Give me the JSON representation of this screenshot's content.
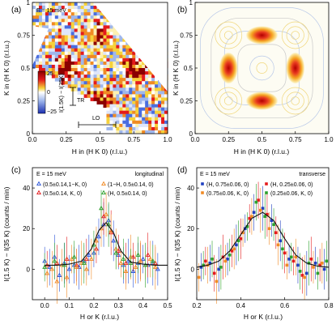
{
  "colors": {
    "red": "#e41a1c",
    "blue": "#2c55d8",
    "orange": "#f08a24",
    "green": "#2ca02c",
    "navy": "#1f3fbf",
    "fit": "#111111"
  },
  "chart_data": [
    {
      "type": "heatmap",
      "panel": "(a)",
      "annotation": "E = 15 meV",
      "xlabel": "H in (H K 0) (r.l.u.)",
      "ylabel": "K in (H K 0) (r.l.u.)",
      "xlim": [
        0.0,
        1.0
      ],
      "ylim": [
        0.0,
        1.0
      ],
      "xticks": [
        "0.0",
        "0.25",
        "0.5",
        "0.75",
        "1.0"
      ],
      "yticks": [
        "0",
        "0.25",
        "0.5",
        "0.75",
        "1"
      ],
      "colorbar": {
        "label": "I(1.5K) − I(35K)",
        "min": -25,
        "max": 25,
        "ticks": [
          "25",
          "0",
          "−25"
        ]
      },
      "markers": [
        "TR",
        "LO"
      ],
      "hotspots": [
        {
          "h": 0.25,
          "k": 0.5
        },
        {
          "h": 0.5,
          "k": 0.25
        },
        {
          "h": 0.5,
          "k": 0.75
        },
        {
          "h": 0.75,
          "k": 0.5
        }
      ]
    },
    {
      "type": "heatmap",
      "panel": "(b)",
      "xlabel": "H in (H K 0) (r.l.u.)",
      "ylabel": "K in (H K 0) (r.l.u.)",
      "xlim": [
        0.0,
        1.0
      ],
      "ylim": [
        0.0,
        1.0
      ],
      "xticks": [
        "0.0",
        "0.25",
        "0.5",
        "0.75",
        "1.0"
      ],
      "yticks": [
        "0",
        "0.25",
        "0.5",
        "0.75",
        "1"
      ],
      "peaks": [
        {
          "h": 0.5,
          "k": 0.75
        },
        {
          "h": 0.25,
          "k": 0.5
        },
        {
          "h": 0.75,
          "k": 0.5
        },
        {
          "h": 0.5,
          "k": 0.25
        }
      ]
    },
    {
      "type": "scatter",
      "panel": "(c)",
      "annotation": "E = 15 meV",
      "tag": "longitudinal",
      "xlabel": "H or K (r.l.u.)",
      "ylabel": "I(1.5 K) − I(35 K) (counts / min)",
      "xlim": [
        -0.05,
        0.5
      ],
      "ylim": [
        -15,
        50
      ],
      "xticks": [
        "0.0",
        "0.1",
        "0.2",
        "0.3",
        "0.4",
        "0.5"
      ],
      "yticks": [
        "0",
        "20",
        "40"
      ],
      "series": [
        {
          "name": "(0.5±0.14,1−K, 0)",
          "color": "blue",
          "x": [
            0.0,
            0.02,
            0.04,
            0.06,
            0.08,
            0.1,
            0.12,
            0.14,
            0.16,
            0.18,
            0.2,
            0.22,
            0.24,
            0.26,
            0.28,
            0.3,
            0.32,
            0.34,
            0.36,
            0.38,
            0.4,
            0.42,
            0.44,
            0.46
          ],
          "y": [
            4,
            1,
            6,
            -3,
            3,
            0,
            2,
            1,
            4,
            7,
            8,
            16,
            22,
            24,
            14,
            7,
            2,
            4,
            -1,
            3,
            5,
            2,
            3,
            0
          ]
        },
        {
          "name": "(0.5±0.14, K, 0)",
          "color": "red",
          "x": [
            0.01,
            0.05,
            0.09,
            0.13,
            0.17,
            0.21,
            0.24,
            0.27,
            0.3,
            0.33,
            0.36,
            0.39,
            0.42,
            0.45
          ],
          "y": [
            2,
            3,
            5,
            2,
            5,
            10,
            26,
            18,
            9,
            3,
            6,
            4,
            7,
            3
          ]
        },
        {
          "name": "(1−H, 0.5±0.14, 0)",
          "color": "orange",
          "x": [
            0.01,
            0.03,
            0.05,
            0.07,
            0.09,
            0.11,
            0.13,
            0.15,
            0.17,
            0.19,
            0.21,
            0.23,
            0.25,
            0.27,
            0.29,
            0.31,
            0.33,
            0.35,
            0.37,
            0.39,
            0.41,
            0.43,
            0.45
          ],
          "y": [
            -2,
            0,
            -6,
            2,
            -4,
            5,
            1,
            3,
            0,
            5,
            14,
            20,
            27,
            19,
            10,
            3,
            -1,
            6,
            1,
            4,
            2,
            5,
            1
          ]
        },
        {
          "name": "(H, 0.5±0.14, 0)",
          "color": "green",
          "x": [
            0.0,
            0.04,
            0.08,
            0.12,
            0.16,
            0.2,
            0.23,
            0.26,
            0.29,
            0.32,
            0.35,
            0.38,
            0.41,
            0.44
          ],
          "y": [
            1,
            4,
            2,
            6,
            3,
            12,
            30,
            22,
            8,
            5,
            3,
            7,
            2,
            4
          ]
        }
      ],
      "fit": {
        "x": [
          0.0,
          0.05,
          0.1,
          0.15,
          0.19,
          0.22,
          0.25,
          0.28,
          0.31,
          0.35,
          0.4,
          0.45,
          0.5
        ],
        "y": [
          2,
          2,
          2.5,
          4,
          10,
          19,
          23,
          18,
          9,
          3.5,
          2.5,
          2,
          2
        ]
      }
    },
    {
      "type": "scatter",
      "panel": "(d)",
      "annotation": "E = 15 meV",
      "tag": "transverse",
      "xlabel": "H or K (r.l.u.)",
      "ylabel": "I(1.5 K) − I(35 K) (counts / min)",
      "xlim": [
        0.2,
        0.8
      ],
      "ylim": [
        -15,
        50
      ],
      "xticks": [
        "0.2",
        "0.4",
        "0.6",
        "0.8"
      ],
      "yticks": [
        "0",
        "20",
        "40"
      ],
      "series": [
        {
          "name": "(H, 0.75±0.06, 0)",
          "color": "navy",
          "x": [
            0.22,
            0.26,
            0.3,
            0.34,
            0.38,
            0.42,
            0.46,
            0.5,
            0.54,
            0.58,
            0.62,
            0.66,
            0.7,
            0.74,
            0.78
          ],
          "y": [
            1,
            3,
            0,
            5,
            12,
            20,
            28,
            30,
            24,
            14,
            5,
            2,
            -2,
            3,
            0
          ]
        },
        {
          "name": "(H, 0.25±0.06, 0)",
          "color": "red",
          "x": [
            0.24,
            0.28,
            0.32,
            0.36,
            0.4,
            0.44,
            0.48,
            0.52,
            0.56,
            0.6,
            0.64,
            0.68,
            0.72,
            0.76
          ],
          "y": [
            4,
            -2,
            6,
            9,
            15,
            25,
            34,
            27,
            18,
            8,
            4,
            -3,
            5,
            2
          ]
        },
        {
          "name": "(0.75±0.06, K, 0)",
          "color": "orange",
          "x": [
            0.21,
            0.25,
            0.29,
            0.33,
            0.37,
            0.41,
            0.45,
            0.49,
            0.53,
            0.57,
            0.61,
            0.65,
            0.69,
            0.73,
            0.77
          ],
          "y": [
            -4,
            2,
            -6,
            4,
            10,
            18,
            26,
            29,
            20,
            12,
            2,
            6,
            -4,
            1,
            3
          ]
        },
        {
          "name": "(0.25±0.06, K, 0)",
          "color": "green",
          "x": [
            0.23,
            0.27,
            0.31,
            0.35,
            0.39,
            0.43,
            0.47,
            0.51,
            0.55,
            0.59,
            0.63,
            0.67,
            0.71,
            0.75,
            0.79
          ],
          "y": [
            2,
            5,
            1,
            7,
            14,
            21,
            33,
            26,
            22,
            10,
            6,
            -1,
            3,
            -2,
            4
          ]
        }
      ],
      "fit": {
        "x": [
          0.2,
          0.25,
          0.3,
          0.35,
          0.4,
          0.45,
          0.5,
          0.55,
          0.6,
          0.65,
          0.7,
          0.75,
          0.8
        ],
        "y": [
          1,
          2,
          4,
          9,
          17,
          25,
          28,
          24,
          15,
          7,
          3,
          1.5,
          1
        ]
      }
    }
  ]
}
